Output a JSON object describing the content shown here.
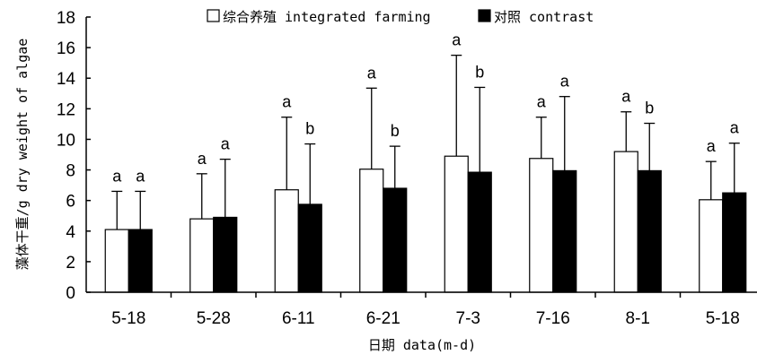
{
  "chart_data": {
    "type": "bar",
    "title": "",
    "xlabel": "日期 data(m-d)",
    "ylabel": "藻体干重/g dry weight of algae",
    "ylim": [
      0,
      18
    ],
    "yticks": [
      0,
      2,
      4,
      6,
      8,
      10,
      12,
      14,
      16,
      18
    ],
    "categories": [
      "5-18",
      "5-28",
      "6-11",
      "6-21",
      "7-3",
      "7-16",
      "8-1",
      "5-18"
    ],
    "legend_position": "top",
    "grid": false,
    "series": [
      {
        "name": "综合养殖 integrated farming",
        "color": "#ffffff",
        "values": [
          4.1,
          4.8,
          6.7,
          8.05,
          8.9,
          8.75,
          9.2,
          6.05
        ],
        "error_upper": [
          6.6,
          7.75,
          11.45,
          13.35,
          15.5,
          11.45,
          11.8,
          8.55
        ],
        "labels": [
          "a",
          "a",
          "a",
          "a",
          "a",
          "a",
          "a",
          "a"
        ]
      },
      {
        "name": "对照 contrast",
        "color": "#000000",
        "values": [
          4.1,
          4.9,
          5.75,
          6.8,
          7.85,
          7.95,
          7.95,
          6.5
        ],
        "error_upper": [
          6.6,
          8.7,
          9.7,
          9.55,
          13.4,
          12.8,
          11.05,
          9.75
        ],
        "labels": [
          "a",
          "a",
          "b",
          "b",
          "b",
          "a",
          "b",
          "a"
        ]
      }
    ]
  }
}
